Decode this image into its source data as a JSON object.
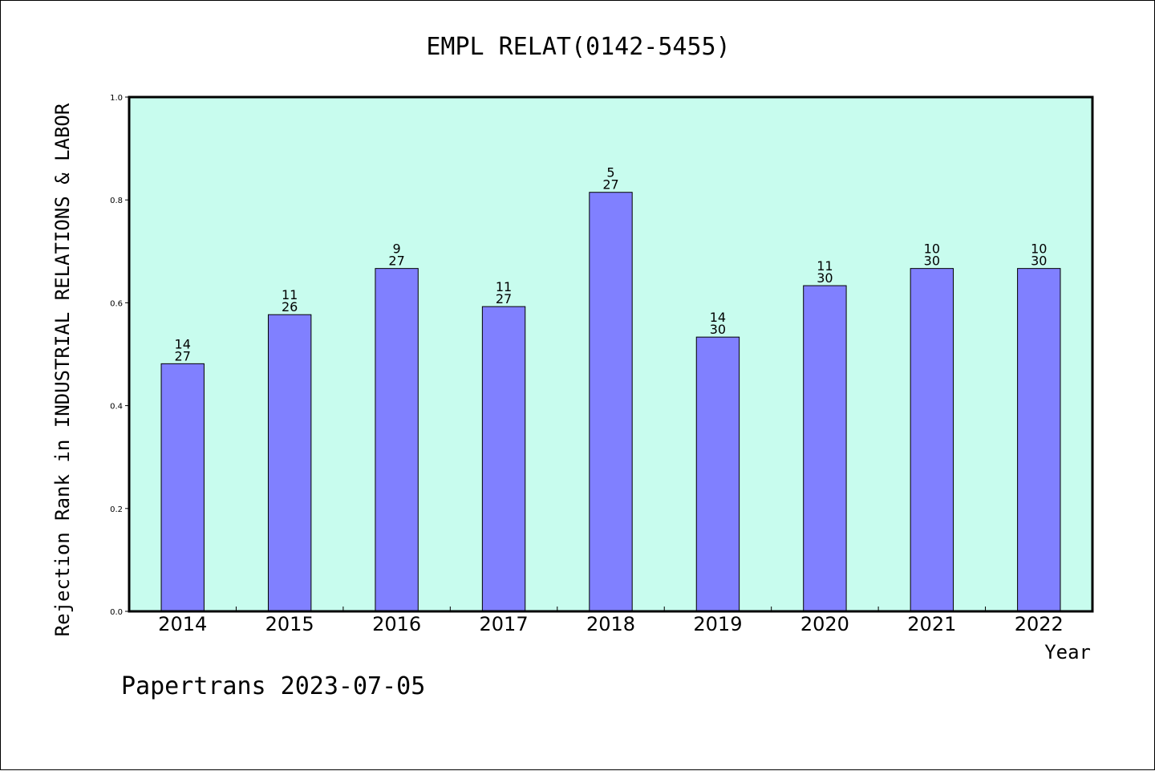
{
  "chart_data": {
    "type": "bar",
    "title": "EMPL RELAT(0142-5455)",
    "xlabel": "Year",
    "ylabel": "Rejection Rank in INDUSTRIAL RELATIONS & LABOR",
    "footer": "Papertrans 2023-07-05",
    "categories": [
      "2014",
      "2015",
      "2016",
      "2017",
      "2018",
      "2019",
      "2020",
      "2021",
      "2022"
    ],
    "values": [
      0.4815,
      0.5769,
      0.6667,
      0.5926,
      0.8148,
      0.5333,
      0.6333,
      0.6667,
      0.6667
    ],
    "annotations": [
      {
        "rank": "14",
        "total": "27"
      },
      {
        "rank": "11",
        "total": "26"
      },
      {
        "rank": "9",
        "total": "27"
      },
      {
        "rank": "11",
        "total": "27"
      },
      {
        "rank": "5",
        "total": "27"
      },
      {
        "rank": "14",
        "total": "30"
      },
      {
        "rank": "11",
        "total": "30"
      },
      {
        "rank": "10",
        "total": "30"
      },
      {
        "rank": "10",
        "total": "30"
      }
    ],
    "ylim": [
      0,
      1.0
    ],
    "yticks": [
      "0.0",
      "0.2",
      "0.4",
      "0.6",
      "0.8",
      "1.0"
    ],
    "grid": false,
    "colors": {
      "plot_background": "#c8fcee",
      "bar_fill": "#8080ff",
      "bar_stroke": "#000000",
      "axis": "#000000"
    }
  }
}
